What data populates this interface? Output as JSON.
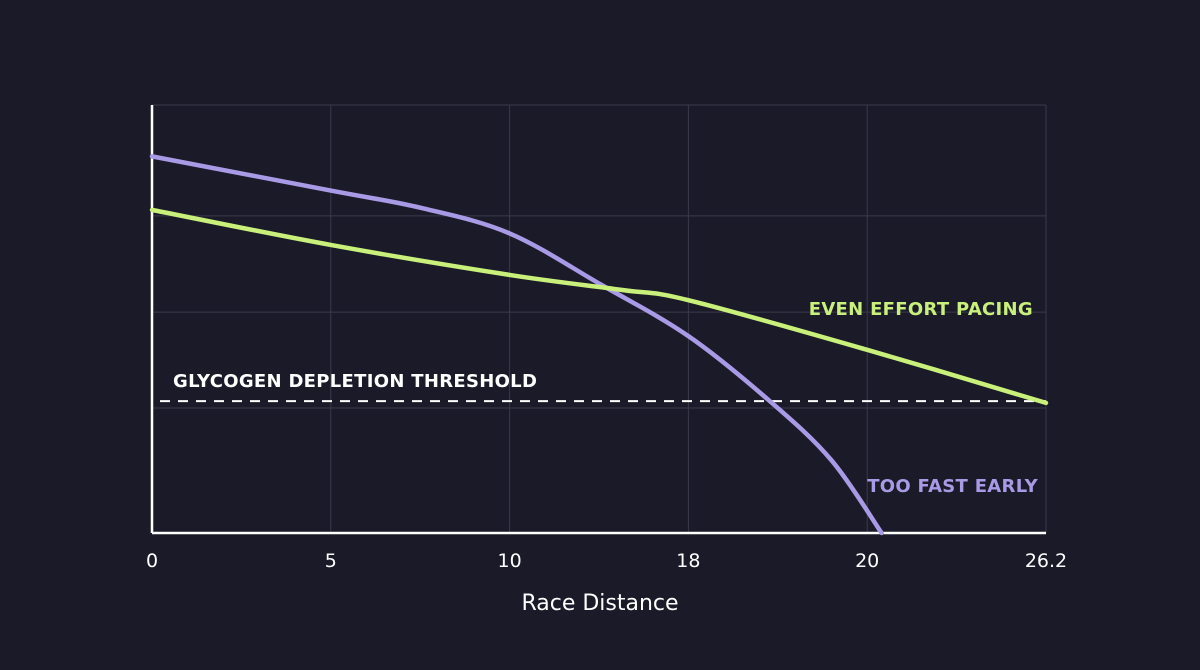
{
  "chart_data": {
    "type": "line",
    "title": "",
    "xlabel": "Race Distance",
    "ylabel": "",
    "x_ticks": [
      0,
      5,
      10,
      18,
      20,
      26.2
    ],
    "x_tick_labels": [
      "0",
      "5",
      "10",
      "18",
      "20",
      "26.2"
    ],
    "xlim": [
      0,
      26.2
    ],
    "ylim": [
      0,
      100
    ],
    "y_tick_labels_shown": false,
    "grid": true,
    "background_color": "#1a1a29",
    "series": [
      {
        "name": "TOO FAST EARLY",
        "color": "#a99ae6",
        "x": [
          0,
          5,
          7.5,
          10,
          14.1,
          18,
          18.9,
          19.6,
          20.5
        ],
        "y": [
          88,
          80,
          76,
          70,
          58,
          46,
          31,
          17,
          0
        ]
      },
      {
        "name": "EVEN EFFORT PACING",
        "color": "#c8f07a",
        "x": [
          0,
          5,
          10,
          15,
          18,
          20,
          26.2
        ],
        "y": [
          75.5,
          67.3,
          60.3,
          56.8,
          54.4,
          42.8,
          30.4
        ]
      }
    ],
    "annotations": [
      {
        "type": "hline",
        "y": 30.8,
        "style": "dashed",
        "color": "#ffffff",
        "label": "GLYCOGEN DEPLETION THRESHOLD"
      }
    ]
  }
}
